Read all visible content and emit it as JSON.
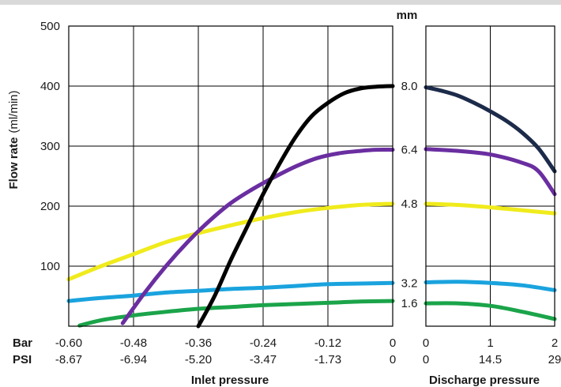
{
  "chart_data": {
    "type": "line",
    "ylabel": {
      "bold": "Flow rate",
      "unit": "(ml/min)"
    },
    "y_ticks": [
      "500",
      "400",
      "300",
      "200",
      "100"
    ],
    "ylim": [
      0,
      500
    ],
    "diameter_unit": "mm",
    "left_panel": {
      "xlabel": "Inlet pressure",
      "xlim": [
        -0.6,
        0
      ],
      "bar_ticks": [
        "-0.60",
        "-0.48",
        "-0.36",
        "-0.24",
        "-0.12",
        "0"
      ],
      "psi_ticks": [
        "-8.67",
        "-6.94",
        "-5.20",
        "-3.47",
        "-1.73",
        "0"
      ]
    },
    "right_panel": {
      "xlabel": "Discharge pressure",
      "xlim": [
        0,
        2
      ],
      "bar_ticks": [
        "0",
        "1",
        "2"
      ],
      "psi_ticks": [
        "0",
        "14.5",
        "29"
      ]
    },
    "row_labels": {
      "bar": "Bar",
      "psi": "PSI"
    },
    "series": [
      {
        "name": "8.0",
        "color_inlet": "#000000",
        "color_discharge": "#1c2b4a",
        "inlet": [
          [
            -0.36,
            0
          ],
          [
            -0.33,
            50
          ],
          [
            -0.3,
            110
          ],
          [
            -0.27,
            165
          ],
          [
            -0.24,
            220
          ],
          [
            -0.21,
            270
          ],
          [
            -0.18,
            315
          ],
          [
            -0.15,
            350
          ],
          [
            -0.12,
            372
          ],
          [
            -0.09,
            388
          ],
          [
            -0.06,
            396
          ],
          [
            -0.03,
            399
          ],
          [
            0,
            400
          ]
        ],
        "discharge": [
          [
            0,
            398
          ],
          [
            0.25,
            392
          ],
          [
            0.5,
            384
          ],
          [
            0.75,
            372
          ],
          [
            1.0,
            358
          ],
          [
            1.25,
            342
          ],
          [
            1.5,
            322
          ],
          [
            1.75,
            296
          ],
          [
            2.0,
            258
          ]
        ]
      },
      {
        "name": "6.4",
        "color_inlet": "#6a2ea0",
        "color_discharge": "#6a2ea0",
        "inlet": [
          [
            -0.5,
            5
          ],
          [
            -0.46,
            55
          ],
          [
            -0.42,
            100
          ],
          [
            -0.38,
            140
          ],
          [
            -0.34,
            175
          ],
          [
            -0.3,
            205
          ],
          [
            -0.26,
            228
          ],
          [
            -0.22,
            248
          ],
          [
            -0.18,
            266
          ],
          [
            -0.14,
            280
          ],
          [
            -0.1,
            288
          ],
          [
            -0.06,
            292
          ],
          [
            -0.03,
            294
          ],
          [
            0,
            294
          ]
        ],
        "discharge": [
          [
            0,
            295
          ],
          [
            0.5,
            292
          ],
          [
            1.0,
            286
          ],
          [
            1.5,
            272
          ],
          [
            1.75,
            258
          ],
          [
            2.0,
            220
          ]
        ]
      },
      {
        "name": "4.8",
        "color_inlet": "#f0eb1c",
        "color_discharge": "#f0eb1c",
        "inlet": [
          [
            -0.6,
            78
          ],
          [
            -0.54,
            100
          ],
          [
            -0.48,
            120
          ],
          [
            -0.42,
            140
          ],
          [
            -0.36,
            155
          ],
          [
            -0.3,
            168
          ],
          [
            -0.24,
            180
          ],
          [
            -0.18,
            190
          ],
          [
            -0.12,
            197
          ],
          [
            -0.06,
            202
          ],
          [
            0,
            204
          ]
        ],
        "discharge": [
          [
            0,
            204
          ],
          [
            0.5,
            202
          ],
          [
            1.0,
            198
          ],
          [
            1.5,
            193
          ],
          [
            2.0,
            188
          ]
        ]
      },
      {
        "name": "3.2",
        "color_inlet": "#1aa3de",
        "color_discharge": "#1aa3de",
        "inlet": [
          [
            -0.6,
            42
          ],
          [
            -0.54,
            47
          ],
          [
            -0.48,
            51
          ],
          [
            -0.42,
            56
          ],
          [
            -0.36,
            59
          ],
          [
            -0.3,
            62
          ],
          [
            -0.24,
            64
          ],
          [
            -0.18,
            67
          ],
          [
            -0.12,
            70
          ],
          [
            -0.06,
            71
          ],
          [
            0,
            72
          ]
        ],
        "discharge": [
          [
            0,
            73
          ],
          [
            0.5,
            74
          ],
          [
            1.0,
            72
          ],
          [
            1.5,
            68
          ],
          [
            2.0,
            60
          ]
        ]
      },
      {
        "name": "1.6",
        "color_inlet": "#1ba44a",
        "color_discharge": "#1ba44a",
        "inlet": [
          [
            -0.58,
            1
          ],
          [
            -0.54,
            10
          ],
          [
            -0.48,
            18
          ],
          [
            -0.42,
            24
          ],
          [
            -0.36,
            29
          ],
          [
            -0.3,
            32
          ],
          [
            -0.24,
            35
          ],
          [
            -0.18,
            37
          ],
          [
            -0.12,
            39
          ],
          [
            -0.06,
            41
          ],
          [
            0,
            42
          ]
        ],
        "discharge": [
          [
            0,
            38
          ],
          [
            0.5,
            38
          ],
          [
            1.0,
            34
          ],
          [
            1.5,
            24
          ],
          [
            2.0,
            12
          ]
        ]
      }
    ]
  }
}
